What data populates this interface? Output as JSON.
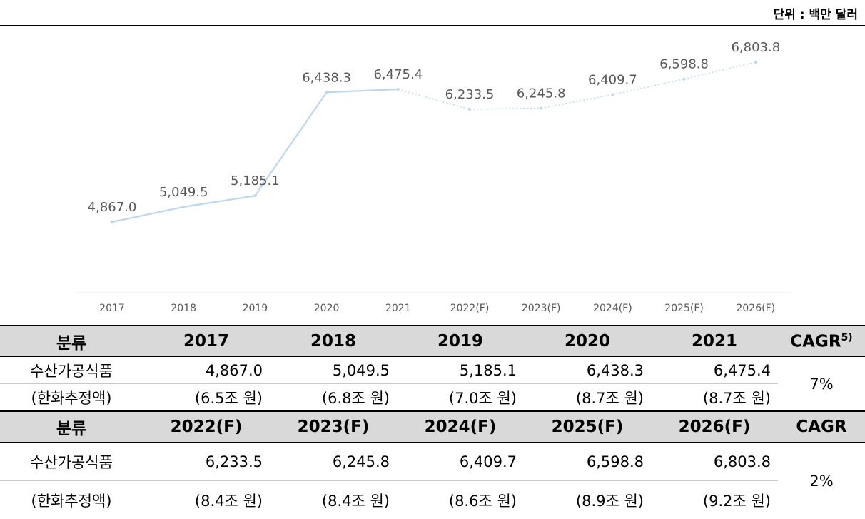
{
  "unit": "단위 : 백만 달러",
  "chart_data": {
    "type": "line",
    "categories": [
      "2017",
      "2018",
      "2019",
      "2020",
      "2021",
      "2022(F)",
      "2023(F)",
      "2024(F)",
      "2025(F)",
      "2026(F)"
    ],
    "values": [
      4867.0,
      5049.5,
      5185.1,
      6438.3,
      6475.4,
      6233.5,
      6245.8,
      6409.7,
      6598.8,
      6803.8
    ],
    "value_labels": [
      "4,867.0",
      "5,049.5",
      "5,185.1",
      "6,438.3",
      "6,475.4",
      "6,233.5",
      "6,245.8",
      "6,409.7",
      "6,598.8",
      "6,803.8"
    ],
    "forecast": [
      false,
      false,
      false,
      false,
      false,
      true,
      true,
      true,
      true,
      true
    ],
    "color": "#bdd7ee"
  },
  "table": {
    "sections": [
      {
        "header": [
          "분류",
          "2017",
          "2018",
          "2019",
          "2020",
          "2021"
        ],
        "cagr_header": "CAGR",
        "cagr_note": "5)",
        "rows": [
          [
            "수산가공식품",
            "4,867.0",
            "5,049.5",
            "5,185.1",
            "6,438.3",
            "6,475.4"
          ],
          [
            "(한화추정액)",
            "(6.5조 원)",
            "(6.8조 원)",
            "(7.0조 원)",
            "(8.7조 원)",
            "(8.7조 원)"
          ]
        ],
        "cagr": "7%"
      },
      {
        "header": [
          "분류",
          "2022(F)",
          "2023(F)",
          "2024(F)",
          "2025(F)",
          "2026(F)"
        ],
        "cagr_header": "CAGR",
        "rows": [
          [
            "수산가공식품",
            "6,233.5",
            "6,245.8",
            "6,409.7",
            "6,598.8",
            "6,803.8"
          ],
          [
            "(한화추정액)",
            "(8.4조 원)",
            "(8.4조 원)",
            "(8.6조 원)",
            "(8.9조 원)",
            "(9.2조 원)"
          ]
        ],
        "cagr": "2%"
      }
    ]
  }
}
